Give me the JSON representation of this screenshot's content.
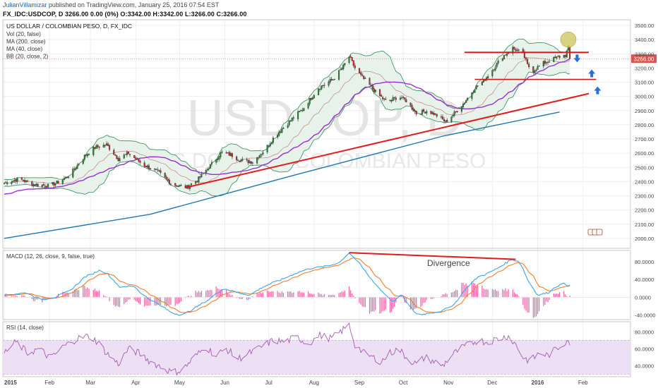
{
  "header": {
    "author": "JulianVillamizar",
    "published_text": "published on TradingView.com, January 25, 2016 07:54 EST",
    "quote_line": "FX_IDC:USDCOP, D 3266.00 0.00 (0%) O:3342.00 H:3342.00 L:3266.00 C:3266.00"
  },
  "chart_data": [
    {
      "type": "line",
      "panel": "price",
      "title": "US DOLLAR / COLOMBIAN PESO, D, FX_IDC",
      "watermark_symbol": "USDCOP, D",
      "watermark_name": "US DOLLAR / COLOMBIAN PESO",
      "indicators": [
        "Vol (20, false)",
        "MA (200, close)",
        "MA (40, close)",
        "BB (20, close, 2)"
      ],
      "price_label": "3266.00",
      "ylim": [
        1930,
        3540
      ],
      "y_ticks": [
        2000,
        2100,
        2200,
        2300,
        2400,
        2500,
        2600,
        2700,
        2800,
        2900,
        3000,
        3100,
        3200,
        3300,
        3400,
        3500
      ],
      "y_tick_labels": [
        "2000.00",
        "2100.00",
        "2200.00",
        "2300.00",
        "2400.00",
        "2500.00",
        "2600.00",
        "2700.00",
        "2800.00",
        "2900.00",
        "3000.00",
        "3100.00",
        "3200.00",
        "3300.00",
        "3400.00",
        "3500.00"
      ],
      "x_ticks": [
        {
          "day": 0,
          "label": "2015"
        },
        {
          "day": 31,
          "label": "Feb"
        },
        {
          "day": 59,
          "label": "Mar"
        },
        {
          "day": 90,
          "label": "Apr"
        },
        {
          "day": 120,
          "label": "May"
        },
        {
          "day": 151,
          "label": "Jun"
        },
        {
          "day": 181,
          "label": "Jul"
        },
        {
          "day": 212,
          "label": "Aug"
        },
        {
          "day": 243,
          "label": "Sep"
        },
        {
          "day": 273,
          "label": "Oct"
        },
        {
          "day": 304,
          "label": "Nov"
        },
        {
          "day": 334,
          "label": "Dec"
        },
        {
          "day": 365,
          "label": "2016"
        },
        {
          "day": 396,
          "label": "Feb"
        }
      ],
      "close_anchors": [
        [
          0,
          2390
        ],
        [
          10,
          2420
        ],
        [
          20,
          2380
        ],
        [
          30,
          2370
        ],
        [
          38,
          2400
        ],
        [
          45,
          2450
        ],
        [
          55,
          2580
        ],
        [
          62,
          2640
        ],
        [
          70,
          2660
        ],
        [
          78,
          2560
        ],
        [
          85,
          2600
        ],
        [
          95,
          2520
        ],
        [
          105,
          2470
        ],
        [
          115,
          2380
        ],
        [
          125,
          2360
        ],
        [
          133,
          2420
        ],
        [
          140,
          2500
        ],
        [
          148,
          2600
        ],
        [
          155,
          2590
        ],
        [
          162,
          2550
        ],
        [
          170,
          2540
        ],
        [
          178,
          2620
        ],
        [
          185,
          2720
        ],
        [
          195,
          2820
        ],
        [
          205,
          2920
        ],
        [
          215,
          3060
        ],
        [
          225,
          3120
        ],
        [
          232,
          3210
        ],
        [
          236,
          3280
        ],
        [
          241,
          3180
        ],
        [
          248,
          3100
        ],
        [
          255,
          3020
        ],
        [
          262,
          2960
        ],
        [
          270,
          3000
        ],
        [
          275,
          2970
        ],
        [
          282,
          2880
        ],
        [
          290,
          2900
        ],
        [
          297,
          2860
        ],
        [
          302,
          2820
        ],
        [
          308,
          2880
        ],
        [
          315,
          2960
        ],
        [
          322,
          3060
        ],
        [
          328,
          3110
        ],
        [
          335,
          3200
        ],
        [
          341,
          3280
        ],
        [
          348,
          3340
        ],
        [
          355,
          3300
        ],
        [
          358,
          3220
        ],
        [
          362,
          3180
        ],
        [
          368,
          3230
        ],
        [
          375,
          3260
        ],
        [
          380,
          3280
        ],
        [
          384,
          3290
        ],
        [
          386,
          3340
        ],
        [
          388,
          3266
        ]
      ],
      "ma200_line": [
        [
          0,
          2000
        ],
        [
          100,
          2170
        ],
        [
          200,
          2450
        ],
        [
          300,
          2720
        ],
        [
          380,
          2890
        ]
      ],
      "support_trend_line": [
        [
          125,
          2360
        ],
        [
          400,
          3020
        ]
      ],
      "resistance_line": {
        "from_day": 315,
        "to_day": 400,
        "value": 3310
      },
      "support_line": {
        "from_day": 322,
        "to_day": 405,
        "value": 3120
      },
      "annotations": [
        "down-arrow",
        "up-arrow",
        "up-arrow",
        "highlight-circle"
      ]
    },
    {
      "type": "line",
      "panel": "macd",
      "title": "MACD (12, 26, close, 9, false, true)",
      "annotation": "Divergence",
      "ylim": [
        -50,
        105
      ],
      "y_ticks": [
        -40,
        0,
        40,
        80
      ],
      "y_tick_labels": [
        "-40.0000",
        "0.0000",
        "40.0000",
        "80.0000"
      ],
      "macd_anchors": [
        [
          0,
          5
        ],
        [
          15,
          10
        ],
        [
          25,
          -5
        ],
        [
          35,
          0
        ],
        [
          45,
          15
        ],
        [
          55,
          45
        ],
        [
          65,
          60
        ],
        [
          70,
          55
        ],
        [
          80,
          20
        ],
        [
          88,
          28
        ],
        [
          95,
          5
        ],
        [
          105,
          -15
        ],
        [
          115,
          -35
        ],
        [
          122,
          -40
        ],
        [
          130,
          -25
        ],
        [
          140,
          -5
        ],
        [
          150,
          20
        ],
        [
          160,
          10
        ],
        [
          168,
          5
        ],
        [
          178,
          25
        ],
        [
          190,
          40
        ],
        [
          200,
          55
        ],
        [
          210,
          65
        ],
        [
          222,
          70
        ],
        [
          230,
          80
        ],
        [
          236,
          100
        ],
        [
          242,
          80
        ],
        [
          250,
          45
        ],
        [
          258,
          15
        ],
        [
          266,
          -10
        ],
        [
          272,
          5
        ],
        [
          277,
          -20
        ],
        [
          283,
          -40
        ],
        [
          292,
          -35
        ],
        [
          300,
          -30
        ],
        [
          308,
          -15
        ],
        [
          316,
          20
        ],
        [
          324,
          45
        ],
        [
          332,
          55
        ],
        [
          340,
          70
        ],
        [
          347,
          85
        ],
        [
          353,
          80
        ],
        [
          358,
          40
        ],
        [
          365,
          5
        ],
        [
          372,
          10
        ],
        [
          378,
          25
        ],
        [
          383,
          30
        ],
        [
          388,
          25
        ]
      ],
      "divergence_line": [
        [
          236,
          100
        ],
        [
          350,
          85
        ]
      ]
    },
    {
      "type": "line",
      "panel": "rsi",
      "title": "RSI (14, close)",
      "ylim": [
        27,
        92
      ],
      "y_ticks": [
        40,
        60,
        80
      ],
      "y_tick_labels": [
        "40.0000",
        "60.0000",
        "80.0000"
      ],
      "band": [
        30,
        70
      ],
      "rsi_anchors": [
        [
          0,
          55
        ],
        [
          8,
          68
        ],
        [
          16,
          55
        ],
        [
          24,
          60
        ],
        [
          32,
          48
        ],
        [
          40,
          62
        ],
        [
          50,
          72
        ],
        [
          58,
          75
        ],
        [
          64,
          68
        ],
        [
          70,
          55
        ],
        [
          78,
          42
        ],
        [
          85,
          60
        ],
        [
          92,
          55
        ],
        [
          100,
          45
        ],
        [
          108,
          38
        ],
        [
          115,
          32
        ],
        [
          122,
          35
        ],
        [
          130,
          50
        ],
        [
          138,
          62
        ],
        [
          145,
          52
        ],
        [
          152,
          60
        ],
        [
          160,
          48
        ],
        [
          168,
          55
        ],
        [
          176,
          62
        ],
        [
          184,
          70
        ],
        [
          192,
          68
        ],
        [
          200,
          74
        ],
        [
          208,
          66
        ],
        [
          216,
          76
        ],
        [
          224,
          72
        ],
        [
          230,
          80
        ],
        [
          236,
          88
        ],
        [
          240,
          65
        ],
        [
          246,
          55
        ],
        [
          252,
          50
        ],
        [
          258,
          45
        ],
        [
          264,
          55
        ],
        [
          270,
          60
        ],
        [
          276,
          48
        ],
        [
          282,
          42
        ],
        [
          288,
          50
        ],
        [
          294,
          45
        ],
        [
          300,
          40
        ],
        [
          306,
          52
        ],
        [
          312,
          60
        ],
        [
          318,
          65
        ],
        [
          324,
          70
        ],
        [
          330,
          68
        ],
        [
          338,
          72
        ],
        [
          345,
          75
        ],
        [
          350,
          65
        ],
        [
          355,
          50
        ],
        [
          360,
          45
        ],
        [
          366,
          55
        ],
        [
          372,
          52
        ],
        [
          378,
          60
        ],
        [
          382,
          65
        ],
        [
          386,
          72
        ],
        [
          388,
          50
        ]
      ]
    }
  ],
  "colors": {
    "candle_up": "#2e7d32",
    "candle_down": "#c62828",
    "ma200": "#1f77b4",
    "ma40": "#9b30d0",
    "bb": "#2e8b57",
    "bb_fill": "#e6f2ea",
    "trend": "#e31b1b",
    "macd": "#3aa6e8",
    "signal": "#f07f2a",
    "hist": "#e565a8",
    "rsi": "#a45bb2",
    "rsi_band": "#ede0f4",
    "arrow": "#2a6fd6",
    "highlight": "#c9c45a"
  }
}
